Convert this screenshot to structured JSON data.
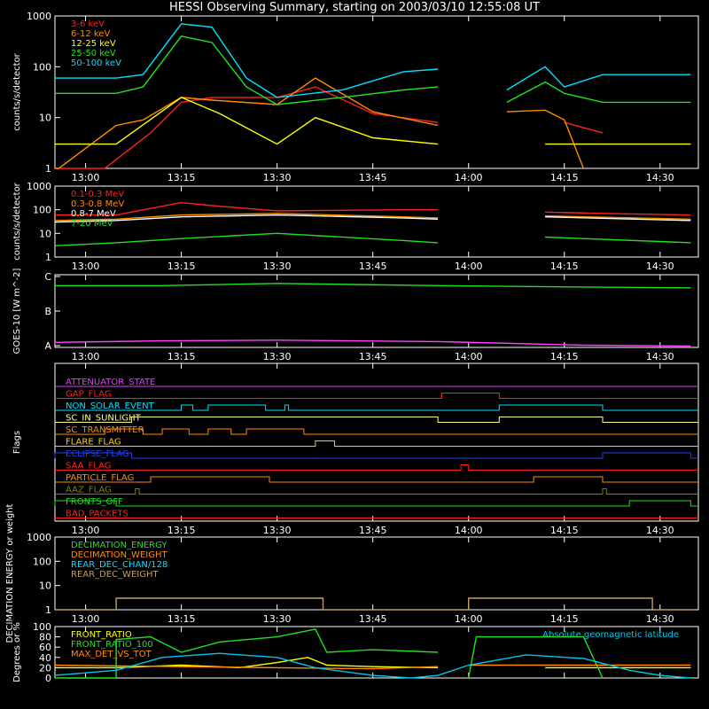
{
  "title": "HESSI Observing Summary, starting on 2003/03/10 12:55:08 UT",
  "chart_data": [
    {
      "type": "line",
      "id": "panel1",
      "ylabel": "counts/s/detector",
      "yscale": "log",
      "ylim": [
        1,
        1000
      ],
      "yticks": [
        "1",
        "10",
        "100",
        "1000"
      ],
      "xticks": [
        "13:00",
        "13:15",
        "13:30",
        "13:45",
        "14:00",
        "14:15",
        "14:30"
      ],
      "series": [
        {
          "name": "3-6 keV",
          "color": "#ff2020",
          "points": [
            [
              12.92,
              1
            ],
            [
              12.93,
              1
            ],
            [
              13.05,
              1
            ],
            [
              13.17,
              5
            ],
            [
              13.25,
              20
            ],
            [
              13.33,
              25
            ],
            [
              13.5,
              25
            ],
            [
              13.6,
              40
            ],
            [
              13.75,
              12
            ],
            [
              13.92,
              8
            ],
            [
              13.93,
              null
            ],
            [
              14.25,
              8
            ],
            [
              14.35,
              5
            ]
          ]
        },
        {
          "name": "6-12 keV",
          "color": "#ff8c00",
          "points": [
            [
              12.92,
              1
            ],
            [
              12.93,
              1
            ],
            [
              13.08,
              7
            ],
            [
              13.15,
              9
            ],
            [
              13.25,
              25
            ],
            [
              13.33,
              22
            ],
            [
              13.5,
              18
            ],
            [
              13.6,
              60
            ],
            [
              13.75,
              13
            ],
            [
              13.92,
              7
            ],
            [
              13.93,
              null
            ],
            [
              14.1,
              13
            ],
            [
              14.2,
              14
            ],
            [
              14.25,
              9
            ],
            [
              14.3,
              1
            ]
          ]
        },
        {
          "name": "12-25 keV",
          "color": "#ffff00",
          "points": [
            [
              12.92,
              3
            ],
            [
              13.08,
              3
            ],
            [
              13.25,
              25
            ],
            [
              13.35,
              12
            ],
            [
              13.5,
              3
            ],
            [
              13.6,
              10
            ],
            [
              13.75,
              4
            ],
            [
              13.92,
              3
            ],
            [
              13.93,
              null
            ],
            [
              14.2,
              3
            ],
            [
              14.58,
              3
            ]
          ]
        },
        {
          "name": "25-50 keV",
          "color": "#20e020",
          "points": [
            [
              12.92,
              30
            ],
            [
              13.08,
              30
            ],
            [
              13.15,
              40
            ],
            [
              13.25,
              400
            ],
            [
              13.33,
              300
            ],
            [
              13.42,
              40
            ],
            [
              13.5,
              18
            ],
            [
              13.67,
              25
            ],
            [
              13.83,
              35
            ],
            [
              13.92,
              40
            ],
            [
              13.93,
              null
            ],
            [
              14.1,
              20
            ],
            [
              14.2,
              50
            ],
            [
              14.25,
              30
            ],
            [
              14.35,
              20
            ],
            [
              14.58,
              20
            ]
          ]
        },
        {
          "name": "50-100 keV",
          "color": "#00e0ff",
          "points": [
            [
              12.92,
              60
            ],
            [
              13.08,
              60
            ],
            [
              13.15,
              70
            ],
            [
              13.25,
              700
            ],
            [
              13.33,
              600
            ],
            [
              13.42,
              60
            ],
            [
              13.5,
              25
            ],
            [
              13.67,
              35
            ],
            [
              13.83,
              80
            ],
            [
              13.92,
              90
            ],
            [
              13.93,
              null
            ],
            [
              14.1,
              35
            ],
            [
              14.2,
              100
            ],
            [
              14.25,
              40
            ],
            [
              14.35,
              70
            ],
            [
              14.58,
              70
            ]
          ]
        }
      ]
    },
    {
      "type": "line",
      "id": "panel2",
      "ylabel": "counts/s/detector",
      "yscale": "log",
      "ylim": [
        1,
        1000
      ],
      "yticks": [
        "1",
        "10",
        "100",
        "1000"
      ],
      "xticks": [
        "13:00",
        "13:15",
        "13:30",
        "13:45",
        "14:00",
        "14:15",
        "14:30"
      ],
      "series": [
        {
          "name": "0.1-0.3 MeV",
          "color": "#ff2020",
          "points": [
            [
              12.92,
              60
            ],
            [
              13.08,
              60
            ],
            [
              13.25,
              200
            ],
            [
              13.33,
              150
            ],
            [
              13.5,
              90
            ],
            [
              13.83,
              100
            ],
            [
              13.92,
              100
            ],
            [
              13.93,
              null
            ],
            [
              14.2,
              80
            ],
            [
              14.35,
              70
            ],
            [
              14.58,
              60
            ]
          ]
        },
        {
          "name": "0.3-0.8 MeV",
          "color": "#ff8c00",
          "points": [
            [
              12.92,
              35
            ],
            [
              13.08,
              40
            ],
            [
              13.25,
              60
            ],
            [
              13.5,
              70
            ],
            [
              13.83,
              50
            ],
            [
              13.92,
              45
            ],
            [
              13.93,
              null
            ],
            [
              14.2,
              55
            ],
            [
              14.58,
              40
            ]
          ]
        },
        {
          "name": "0.8-7 MeV",
          "color": "#ffffff",
          "points": [
            [
              12.92,
              30
            ],
            [
              13.08,
              35
            ],
            [
              13.25,
              50
            ],
            [
              13.5,
              60
            ],
            [
              13.83,
              45
            ],
            [
              13.92,
              40
            ],
            [
              13.93,
              null
            ],
            [
              14.2,
              50
            ],
            [
              14.58,
              35
            ]
          ]
        },
        {
          "name": "7-20 MeV",
          "color": "#20e020",
          "points": [
            [
              12.92,
              3
            ],
            [
              13.08,
              4
            ],
            [
              13.25,
              6
            ],
            [
              13.5,
              10
            ],
            [
              13.83,
              5
            ],
            [
              13.92,
              4
            ],
            [
              13.93,
              null
            ],
            [
              14.2,
              7
            ],
            [
              14.58,
              4
            ]
          ]
        }
      ]
    },
    {
      "type": "line",
      "id": "panel3",
      "ylabel": "GOES-10 [W m^-2]",
      "yticks": [
        "A",
        "B",
        "C"
      ],
      "xticks": [
        "13:00",
        "13:15",
        "13:30",
        "13:45",
        "14:00",
        "14:15",
        "14:30"
      ],
      "series": [
        {
          "name": "",
          "color": "#20e020",
          "points": [
            [
              12.92,
              0.85
            ],
            [
              13.2,
              0.85
            ],
            [
              13.5,
              0.88
            ],
            [
              13.92,
              0.85
            ],
            [
              14.3,
              0.83
            ],
            [
              14.58,
              0.82
            ]
          ]
        },
        {
          "name": "",
          "color": "#ff40ff",
          "points": [
            [
              12.92,
              0.07
            ],
            [
              13.2,
              0.09
            ],
            [
              13.5,
              0.1
            ],
            [
              13.92,
              0.08
            ],
            [
              14.3,
              0.03
            ],
            [
              14.58,
              0.02
            ]
          ]
        }
      ]
    },
    {
      "type": "flags",
      "id": "panel4",
      "ylabel": "Flags",
      "xticks": [
        "13:00",
        "13:15",
        "13:30",
        "13:45",
        "14:00",
        "14:15",
        "14:30"
      ],
      "flags": [
        {
          "name": "ATTENUATOR_STATE",
          "color": "#e040ff",
          "on": []
        },
        {
          "name": "GAP_FLAG",
          "color": "#ff2020",
          "on": [
            [
              13.93,
              14.08
            ]
          ]
        },
        {
          "name": "NON_SOLAR_EVENT",
          "color": "#00e0ff",
          "on": [
            [
              13.25,
              13.28
            ],
            [
              13.32,
              13.47
            ],
            [
              13.52,
              13.53
            ],
            [
              14.08,
              14.35
            ]
          ]
        },
        {
          "name": "SC_IN_SUNLIGHT",
          "color": "#ffff90",
          "on": [
            [
              13.12,
              13.92
            ],
            [
              14.08,
              14.35
            ]
          ]
        },
        {
          "name": "SC_TRANSMITTER",
          "color": "#ff8c00",
          "on": [
            [
              13.05,
              13.15
            ],
            [
              13.2,
              13.27
            ],
            [
              13.32,
              13.38
            ],
            [
              13.42,
              13.57
            ]
          ]
        },
        {
          "name": "FLARE_FLAG",
          "color": "#ffd000",
          "on": [
            [
              13.6,
              13.65
            ]
          ]
        },
        {
          "name": "ECLIPSE_FLAG",
          "color": "#2040ff",
          "on": [
            [
              12.92,
              13.12
            ],
            [
              14.35,
              14.58
            ]
          ]
        },
        {
          "name": "SAA_FLAG",
          "color": "#ff2020",
          "on": [
            [
              13.98,
              14.0
            ]
          ]
        },
        {
          "name": "PARTICLE_FLAG",
          "color": "#ff8c00",
          "on": [
            [
              13.17,
              13.48
            ],
            [
              14.17,
              14.35
            ]
          ]
        },
        {
          "name": "AAZ_FLAG",
          "color": "#808000",
          "on": [
            [
              13.13,
              13.14
            ],
            [
              14.35,
              14.36
            ]
          ]
        },
        {
          "name": "FRONTS_OFF",
          "color": "#20e020",
          "on": [
            [
              12.92,
              13.08
            ],
            [
              14.42,
              14.58
            ]
          ]
        },
        {
          "name": "BAD_PACKETS",
          "color": "#ff2020",
          "on": []
        }
      ]
    },
    {
      "type": "line",
      "id": "panel5",
      "ylabel": "DECIMATION ENERGY or weight",
      "yscale": "log",
      "ylim": [
        1,
        1000
      ],
      "yticks": [
        "1",
        "10",
        "100",
        "1000"
      ],
      "xticks": [
        "13:00",
        "13:15",
        "13:30",
        "13:45",
        "14:00",
        "14:15",
        "14:30"
      ],
      "series": [
        {
          "name": "DECIMATION_ENERGY",
          "color": "#20e020",
          "points": []
        },
        {
          "name": "DECIMATION_WEIGHT",
          "color": "#ff8c00",
          "points": []
        },
        {
          "name": "REAR_DEC_CHAN/128",
          "color": "#00e0ff",
          "points": []
        },
        {
          "name": "REAR_DEC_WEIGHT",
          "color": "#c0a060",
          "points": [
            [
              12.92,
              1
            ],
            [
              13.08,
              1
            ],
            [
              13.08,
              3
            ],
            [
              13.62,
              3
            ],
            [
              13.62,
              1
            ],
            [
              14.0,
              1
            ],
            [
              14.0,
              3
            ],
            [
              14.48,
              3
            ],
            [
              14.48,
              1
            ],
            [
              14.58,
              1
            ]
          ]
        }
      ]
    },
    {
      "type": "line",
      "id": "panel6",
      "ylabel": "Degrees or %",
      "ylim": [
        0,
        100
      ],
      "yticks": [
        "0",
        "20",
        "40",
        "60",
        "80",
        "100"
      ],
      "annotation": "Absolute geomagnetic latitude",
      "series": [
        {
          "name": "FRONT_RATIO",
          "color": "#ffff00",
          "points": [
            [
              12.92,
              20
            ],
            [
              13.08,
              20
            ],
            [
              13.25,
              25
            ],
            [
              13.4,
              20
            ],
            [
              13.5,
              30
            ],
            [
              13.58,
              40
            ],
            [
              13.63,
              25
            ],
            [
              13.75,
              22
            ],
            [
              13.92,
              20
            ],
            [
              13.93,
              null
            ],
            [
              14.2,
              20
            ],
            [
              14.58,
              20
            ]
          ]
        },
        {
          "name": "FRONT_RATIO_100",
          "color": "#20e020",
          "points": [
            [
              12.92,
              0
            ],
            [
              13.08,
              0
            ],
            [
              13.08,
              75
            ],
            [
              13.17,
              80
            ],
            [
              13.25,
              50
            ],
            [
              13.35,
              70
            ],
            [
              13.5,
              80
            ],
            [
              13.6,
              95
            ],
            [
              13.63,
              50
            ],
            [
              13.75,
              55
            ],
            [
              13.92,
              50
            ],
            [
              13.93,
              null
            ],
            [
              14.0,
              0
            ],
            [
              14.02,
              80
            ],
            [
              14.3,
              80
            ],
            [
              14.35,
              0
            ]
          ]
        },
        {
          "name": "MAX_DET_VS_TOT",
          "color": "#ff8c00",
          "points": [
            [
              12.92,
              25
            ],
            [
              13.25,
              22
            ],
            [
              13.5,
              20
            ],
            [
              13.75,
              18
            ],
            [
              13.92,
              22
            ],
            [
              13.93,
              null
            ],
            [
              14.0,
              25
            ],
            [
              14.58,
              25
            ]
          ]
        },
        {
          "name": "",
          "color": "#00c8e8",
          "points": [
            [
              12.92,
              5
            ],
            [
              13.08,
              15
            ],
            [
              13.2,
              40
            ],
            [
              13.35,
              48
            ],
            [
              13.5,
              40
            ],
            [
              13.6,
              20
            ],
            [
              13.75,
              5
            ],
            [
              13.85,
              0
            ],
            [
              13.92,
              5
            ],
            [
              14.0,
              25
            ],
            [
              14.15,
              45
            ],
            [
              14.3,
              38
            ],
            [
              14.42,
              15
            ],
            [
              14.5,
              5
            ],
            [
              14.58,
              0
            ]
          ]
        }
      ]
    }
  ]
}
